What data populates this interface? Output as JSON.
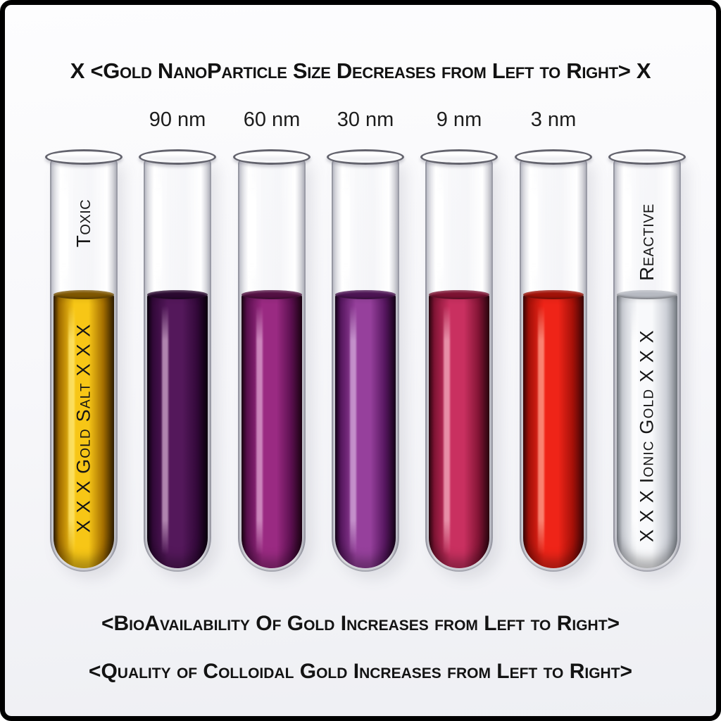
{
  "title": "X  <Gold NanoParticle Size Decreases from Left to Right>  X",
  "footer": {
    "line1": "<BioAvailability Of Gold Increases from Left to Right>",
    "line2": "<Quality of Colloidal Gold Increases from Left to Right>"
  },
  "tubes": [
    {
      "name": "gold-salt",
      "size_label": "",
      "glass_label": "Toxic",
      "liquid_label": "X X X  Gold Salt  X X X",
      "liquid_color_name": "golden yellow",
      "colors": {
        "edge": "#3a2400",
        "mid": "#a56f00",
        "center": "#f7c616",
        "highlight": "#ffe873",
        "meniscus": "#7e5600"
      }
    },
    {
      "name": "90-nm",
      "size_label": "90 nm",
      "glass_label": "",
      "liquid_label": "",
      "liquid_color_name": "dark purple",
      "colors": {
        "edge": "#0c0210",
        "mid": "#33093a",
        "center": "#54185b",
        "highlight": "#cba4c8",
        "meniscus": "#2a0930"
      }
    },
    {
      "name": "60-nm",
      "size_label": "60 nm",
      "glass_label": "",
      "liquid_label": "",
      "liquid_color_name": "magenta purple",
      "colors": {
        "edge": "#220418",
        "mid": "#5c1050",
        "center": "#9a2a82",
        "highlight": "#dc9fce",
        "meniscus": "#531043"
      }
    },
    {
      "name": "30-nm",
      "size_label": "30 nm",
      "glass_label": "",
      "liquid_label": "",
      "liquid_color_name": "violet purple",
      "colors": {
        "edge": "#1c0520",
        "mid": "#571760",
        "center": "#96409c",
        "highlight": "#d3a8da",
        "meniscus": "#4c1453"
      }
    },
    {
      "name": "9-nm",
      "size_label": "9 nm",
      "glass_label": "",
      "liquid_label": "",
      "liquid_color_name": "raspberry crimson",
      "colors": {
        "edge": "#330712",
        "mid": "#841536",
        "center": "#c93060",
        "highlight": "#f3abbd",
        "meniscus": "#7c1232"
      }
    },
    {
      "name": "3-nm",
      "size_label": "3 nm",
      "glass_label": "",
      "liquid_label": "",
      "liquid_color_name": "bright red",
      "colors": {
        "edge": "#4a0708",
        "mid": "#a61109",
        "center": "#ef2418",
        "highlight": "#ff9d8a",
        "meniscus": "#a11208"
      }
    },
    {
      "name": "ionic-gold",
      "size_label": "",
      "glass_label": "Reactive",
      "liquid_label": "X X X  Ionic Gold  X X X",
      "liquid_color_name": "clear colorless",
      "colors": {
        "edge": "#8f959e",
        "mid": "#cdd0d7",
        "center": "#f8f9fb",
        "highlight": "#ffffff",
        "meniscus": "#b7bac2"
      }
    }
  ]
}
